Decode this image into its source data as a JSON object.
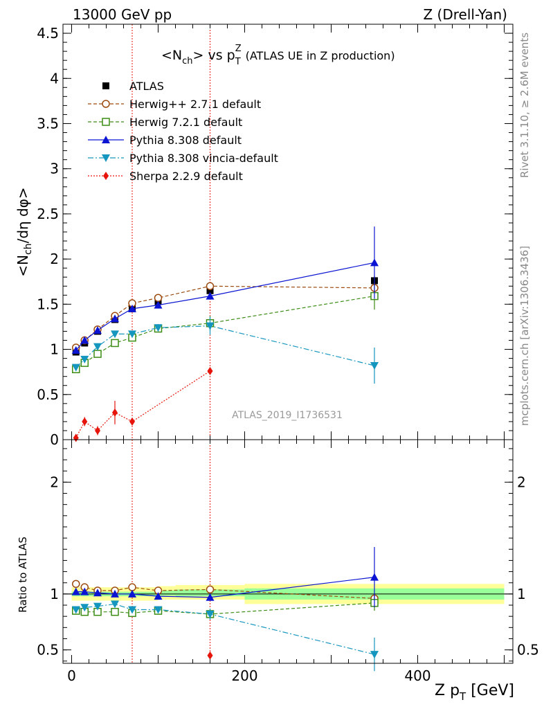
{
  "header": {
    "left": "13000 GeV pp",
    "right": "Z (Drell-Yan)"
  },
  "title": {
    "main": "<N",
    "main_sub": "ch",
    "main_mid": "> vs p",
    "main_sub2": "T",
    "main_sup2": "Z",
    "extra": "(ATLAS UE in Z production)"
  },
  "side_labels": {
    "rivet": "Rivet 3.1.10, ≥ 2.6M events",
    "mcplots": "mcplots.cern.ch [arXiv:1306.3436]"
  },
  "watermark": "ATLAS_2019_I1736531",
  "ylabel_top": "<N_ch/dη dφ>",
  "ylabel_bottom": "Ratio to ATLAS",
  "xlabel": "Z p_T [GeV]",
  "legend": [
    {
      "label": "ATLAS",
      "color": "#000000",
      "marker": "filled-square",
      "line": "none"
    },
    {
      "label": "Herwig++ 2.7.1 default",
      "color": "#9c4a0e",
      "marker": "open-circle",
      "line": "dashed"
    },
    {
      "label": "Herwig 7.2.1 default",
      "color": "#3c8c14",
      "marker": "open-square",
      "line": "dashed"
    },
    {
      "label": "Pythia 8.308 default",
      "color": "#0a14d2",
      "marker": "filled-triangle-up",
      "line": "solid"
    },
    {
      "label": "Pythia 8.308 vincia-default",
      "color": "#1496be",
      "marker": "filled-triangle-down",
      "line": "dashdot"
    },
    {
      "label": "Sherpa 2.2.9 default",
      "color": "#e6140a",
      "marker": "filled-diamond",
      "line": "dotted"
    }
  ],
  "chart_data": [
    {
      "type": "scatter",
      "panel": "main",
      "xlim": [
        -10,
        510
      ],
      "ylim": [
        0,
        4.6
      ],
      "yticks": [
        0,
        0.5,
        1,
        1.5,
        2,
        2.5,
        3,
        3.5,
        4,
        4.5
      ],
      "ytick_labels": [
        "0",
        "0.5",
        "1",
        "1.5",
        "2",
        "2.5",
        "3",
        "3.5",
        "4",
        "4.5"
      ],
      "vertical_lines_x": [
        70,
        160
      ],
      "series": [
        {
          "name": "ATLAS",
          "x": [
            5,
            15,
            30,
            50,
            70,
            100,
            160,
            350
          ],
          "y": [
            0.97,
            1.07,
            1.2,
            1.33,
            1.45,
            1.53,
            1.65,
            1.76
          ],
          "err": [
            0.02,
            0.02,
            0.02,
            0.02,
            0.02,
            0.02,
            0.03,
            0.05
          ]
        },
        {
          "name": "Herwig++ 2.7.1 default",
          "x": [
            5,
            15,
            30,
            50,
            70,
            100,
            160,
            350
          ],
          "y": [
            1.02,
            1.1,
            1.22,
            1.37,
            1.51,
            1.57,
            1.7,
            1.68
          ],
          "err": [
            0,
            0,
            0,
            0,
            0,
            0,
            0.03,
            0.06
          ]
        },
        {
          "name": "Herwig 7.2.1 default",
          "x": [
            5,
            15,
            30,
            50,
            70,
            100,
            160,
            350
          ],
          "y": [
            0.78,
            0.85,
            0.95,
            1.07,
            1.13,
            1.23,
            1.29,
            1.59
          ],
          "err": [
            0,
            0,
            0,
            0,
            0,
            0.04,
            0.08,
            0.15
          ]
        },
        {
          "name": "Pythia 8.308 default",
          "x": [
            5,
            15,
            30,
            50,
            70,
            100,
            160,
            350
          ],
          "y": [
            0.99,
            1.1,
            1.21,
            1.34,
            1.45,
            1.49,
            1.59,
            1.96
          ],
          "err": [
            0,
            0,
            0,
            0,
            0,
            0,
            0.02,
            0.4
          ]
        },
        {
          "name": "Pythia 8.308 vincia-default",
          "x": [
            5,
            15,
            30,
            50,
            70,
            100,
            160,
            350
          ],
          "y": [
            0.8,
            0.89,
            1.03,
            1.17,
            1.17,
            1.24,
            1.26,
            0.82
          ],
          "err": [
            0,
            0,
            0,
            0,
            0,
            0.04,
            0.1,
            0.2
          ]
        },
        {
          "name": "Sherpa 2.2.9 default",
          "x": [
            5,
            15,
            30,
            50,
            70,
            160
          ],
          "y": [
            0.02,
            0.2,
            0.1,
            0.3,
            0.2,
            0.76
          ],
          "err": [
            0.02,
            0.05,
            0.05,
            0.13,
            0,
            0.02
          ]
        }
      ]
    },
    {
      "type": "scatter",
      "panel": "ratio",
      "xlim": [
        -10,
        510
      ],
      "ylim": [
        0.38,
        2.38
      ],
      "yticks": [
        0.5,
        1,
        2
      ],
      "ytick_labels": [
        "0.5",
        "1",
        "2"
      ],
      "xticks": [
        0,
        200,
        400
      ],
      "xtick_labels": [
        "0",
        "200",
        "400"
      ],
      "reference_line_y": 1,
      "uncertainty_bands": [
        {
          "kind": "stat",
          "color": "#99ff99",
          "x": [
            0,
            100,
            120,
            200,
            500
          ],
          "lo": [
            0.98,
            0.985,
            0.98,
            0.95,
            0.95
          ],
          "hi": [
            1.02,
            1.03,
            1.04,
            1.05,
            1.05
          ]
        },
        {
          "kind": "total",
          "color": "#ffff99",
          "x": [
            0,
            100,
            120,
            200,
            500
          ],
          "lo": [
            0.94,
            0.95,
            0.95,
            0.91,
            0.91
          ],
          "hi": [
            1.06,
            1.07,
            1.08,
            1.09,
            1.09
          ]
        }
      ],
      "series": [
        {
          "name": "Herwig++ 2.7.1 default",
          "x": [
            5,
            15,
            30,
            50,
            70,
            100,
            160,
            350
          ],
          "y": [
            1.09,
            1.06,
            1.03,
            1.03,
            1.06,
            1.03,
            1.04,
            0.96
          ],
          "err": [
            0,
            0,
            0,
            0,
            0,
            0,
            0.02,
            0.04
          ]
        },
        {
          "name": "Herwig 7.2.1 default",
          "x": [
            5,
            15,
            30,
            50,
            70,
            100,
            160,
            350
          ],
          "y": [
            0.85,
            0.84,
            0.84,
            0.84,
            0.83,
            0.85,
            0.82,
            0.92
          ],
          "err": [
            0,
            0,
            0,
            0,
            0,
            0.02,
            0.04,
            0.07
          ]
        },
        {
          "name": "Pythia 8.308 default",
          "x": [
            5,
            15,
            30,
            50,
            70,
            100,
            160,
            350
          ],
          "y": [
            1.02,
            1.02,
            1.01,
            1.0,
            1.0,
            0.98,
            0.97,
            1.15
          ],
          "err": [
            0,
            0,
            0,
            0,
            0,
            0,
            0.02,
            0.27
          ]
        },
        {
          "name": "Pythia 8.308 vincia-default",
          "x": [
            5,
            15,
            30,
            50,
            70,
            100,
            160,
            350
          ],
          "y": [
            0.86,
            0.88,
            0.89,
            0.91,
            0.86,
            0.86,
            0.82,
            0.46
          ],
          "err": [
            0,
            0,
            0,
            0,
            0,
            0.02,
            0.05,
            0.15
          ]
        },
        {
          "name": "Sherpa 2.2.9 default",
          "x": [
            160
          ],
          "y": [
            0.45
          ],
          "err": [
            0
          ]
        }
      ]
    }
  ]
}
